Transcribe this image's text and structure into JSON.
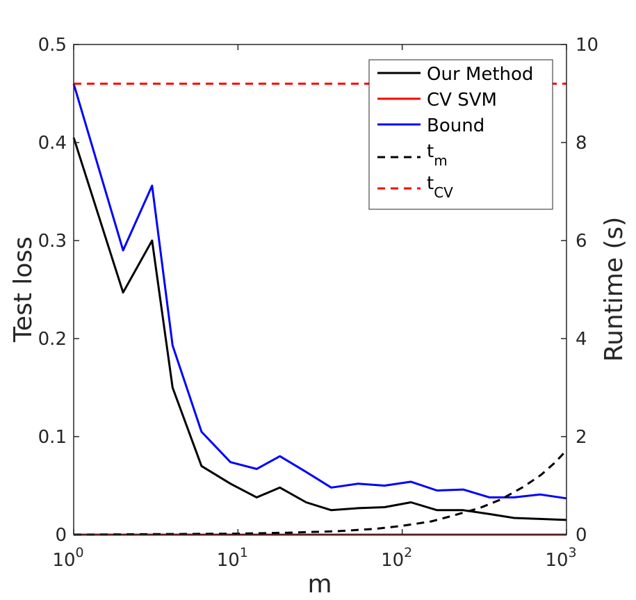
{
  "chart_data": {
    "type": "line",
    "title": "",
    "xlabel": "m",
    "ylabel_left": "Test loss",
    "ylabel_right": "Runtime (s)",
    "x_scale": "log",
    "xlim": [
      1,
      1000
    ],
    "ylim_left": [
      0,
      0.5
    ],
    "ylim_right": [
      0,
      10
    ],
    "x_ticks": [
      {
        "value": 1,
        "base": "10",
        "exp": "0"
      },
      {
        "value": 10,
        "base": "10",
        "exp": "1"
      },
      {
        "value": 100,
        "base": "10",
        "exp": "2"
      },
      {
        "value": 1000,
        "base": "10",
        "exp": "3"
      }
    ],
    "y_ticks_left": [
      "0",
      "0.1",
      "0.2",
      "0.3",
      "0.4",
      "0.5"
    ],
    "y_tick_values_left": [
      0,
      0.1,
      0.2,
      0.3,
      0.4,
      0.5
    ],
    "y_ticks_right": [
      "0",
      "2",
      "4",
      "6",
      "8",
      "10"
    ],
    "y_tick_values_right": [
      0,
      2,
      4,
      6,
      8,
      10
    ],
    "legend_position": "top-right",
    "series": [
      {
        "name": "Our Method",
        "axis": "left",
        "color": "#000000",
        "dash": "solid",
        "x": [
          1,
          2,
          3,
          4,
          6,
          9,
          13,
          18,
          26,
          37,
          54,
          78,
          113,
          163,
          235,
          340,
          480,
          690,
          1000
        ],
        "values": [
          0.405,
          0.247,
          0.3,
          0.15,
          0.07,
          0.052,
          0.038,
          0.048,
          0.033,
          0.025,
          0.027,
          0.028,
          0.033,
          0.025,
          0.025,
          0.021,
          0.017,
          0.016,
          0.015
        ]
      },
      {
        "name": "CV SVM",
        "axis": "left",
        "color": "#ff0000",
        "dash": "solid",
        "x": [
          1,
          1000
        ],
        "values": [
          0.0,
          0.0
        ]
      },
      {
        "name": "Bound",
        "axis": "left",
        "color": "#0000ff",
        "dash": "solid",
        "x": [
          1,
          2,
          3,
          4,
          6,
          9,
          13,
          18,
          26,
          37,
          54,
          78,
          113,
          163,
          235,
          340,
          480,
          690,
          1000
        ],
        "values": [
          0.46,
          0.29,
          0.356,
          0.193,
          0.105,
          0.074,
          0.067,
          0.08,
          0.064,
          0.048,
          0.052,
          0.05,
          0.054,
          0.045,
          0.046,
          0.038,
          0.038,
          0.041,
          0.037
        ]
      },
      {
        "name": "t",
        "sub": "m",
        "axis": "right",
        "color": "#000000",
        "dash": "dashed",
        "x": [
          1,
          3,
          10,
          20,
          40,
          70,
          100,
          150,
          200,
          300,
          400,
          550,
          700,
          850,
          1000
        ],
        "values": [
          0.0,
          0.01,
          0.02,
          0.04,
          0.07,
          0.12,
          0.18,
          0.27,
          0.38,
          0.55,
          0.72,
          0.98,
          1.22,
          1.47,
          1.72
        ]
      },
      {
        "name": "t",
        "sub": "CV",
        "axis": "right",
        "color": "#ff0000",
        "dash": "dashed",
        "x": [
          1,
          1000
        ],
        "values": [
          9.2,
          9.2
        ]
      }
    ]
  }
}
